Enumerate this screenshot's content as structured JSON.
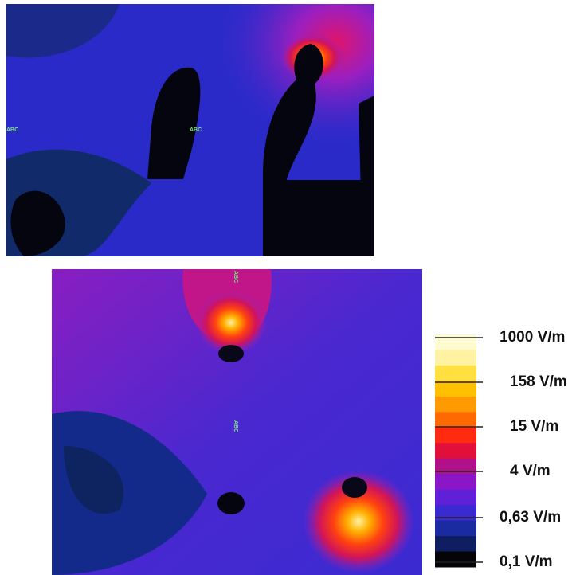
{
  "top_image": {
    "markers": [
      "ABC",
      "ABC"
    ]
  },
  "bottom_image": {
    "markers": [
      "ABC",
      "ABC"
    ]
  },
  "colorbar": {
    "labels": [
      "1000 V/m",
      "158 V/m",
      "15 V/m",
      "4 V/m",
      "0,63 V/m",
      "0,1 V/m"
    ]
  }
}
